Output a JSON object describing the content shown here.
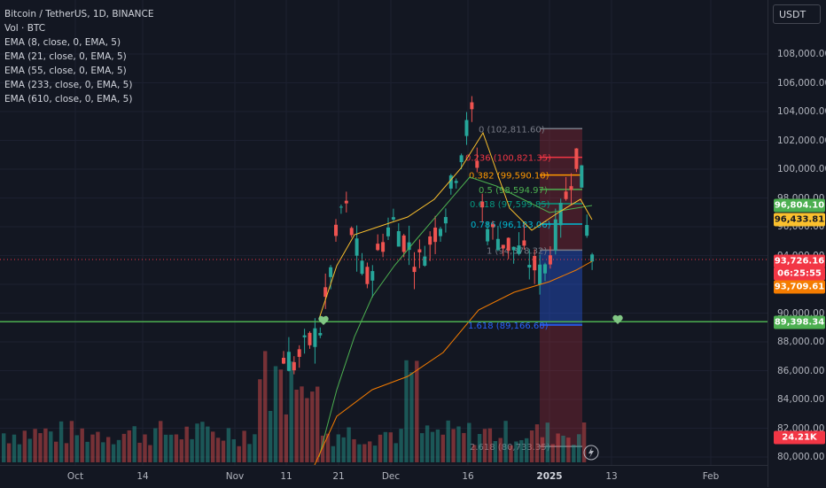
{
  "legend": {
    "symbol": "Bitcoin / TetherUS, 1D, BINANCE",
    "volume": "Vol · BTC",
    "ema": [
      "EMA (8, close, 0, EMA, 5)",
      "EMA (21, close, 0, EMA, 5)",
      "EMA (55, close, 0, EMA, 5)",
      "EMA (233, close, 0, EMA, 5)",
      "EMA (610, close, 0, EMA, 5)"
    ]
  },
  "price_scale": {
    "currency": "USDT",
    "ticks": [
      "108,000.00",
      "106,000.00",
      "104,000.00",
      "102,000.00",
      "100,000.00",
      "98,000.00",
      "96,000.00",
      "94,000.00",
      "92,000.00",
      "90,000.00",
      "88,000.00",
      "86,000.00",
      "84,000.00",
      "82,000.00",
      "80,000.00"
    ],
    "tags": {
      "ema_green": "96,804.10",
      "ema_yellow": "96,433.81",
      "last_price": "93,726.16",
      "countdown": "06:25:55",
      "ema_orange": "93,709.61",
      "horizontal_line": "89,398.34",
      "volume": "24.21K"
    }
  },
  "time_scale": {
    "labels": [
      "Oct",
      "14",
      "Nov",
      "11",
      "21",
      "Dec",
      "16",
      "2025",
      "13",
      "Feb"
    ]
  },
  "fib": {
    "labels": [
      "0 (102,811.60)",
      "0.236 (100,821.35)",
      "0.382 (99,590.10)",
      "0.5 (98,594.97)",
      "0.618 (97,599.85)",
      "0.786 (96,183.06)",
      "1 (94,378.32)",
      "1.618 (89,166.60)",
      "2.618 (80,733.35)"
    ]
  },
  "colors": {
    "up": "#26a69a",
    "down": "#ef5350",
    "background": "#131722",
    "horizontal_line": "#4caf50",
    "ema_green": "#4caf50",
    "ema_yellow": "#fbc02d",
    "ema_orange": "#f57c00"
  },
  "icons": [
    "heart-icon",
    "lightning-icon"
  ],
  "chart_data": {
    "type": "candlestick",
    "symbol": "Bitcoin / TetherUS",
    "interval": "1D",
    "y_range": [
      79600,
      110100
    ],
    "series": [
      {
        "name": "BTC/USDT"
      }
    ],
    "ohlc_start_x_note": "",
    "candles": [],
    "ema_levels": {
      "ema_green": 96804.1,
      "ema_yellow": 96433.81,
      "ema_orange": 93709.61
    },
    "last_price": 93726.16,
    "horizontal_line": 89398.34
  }
}
